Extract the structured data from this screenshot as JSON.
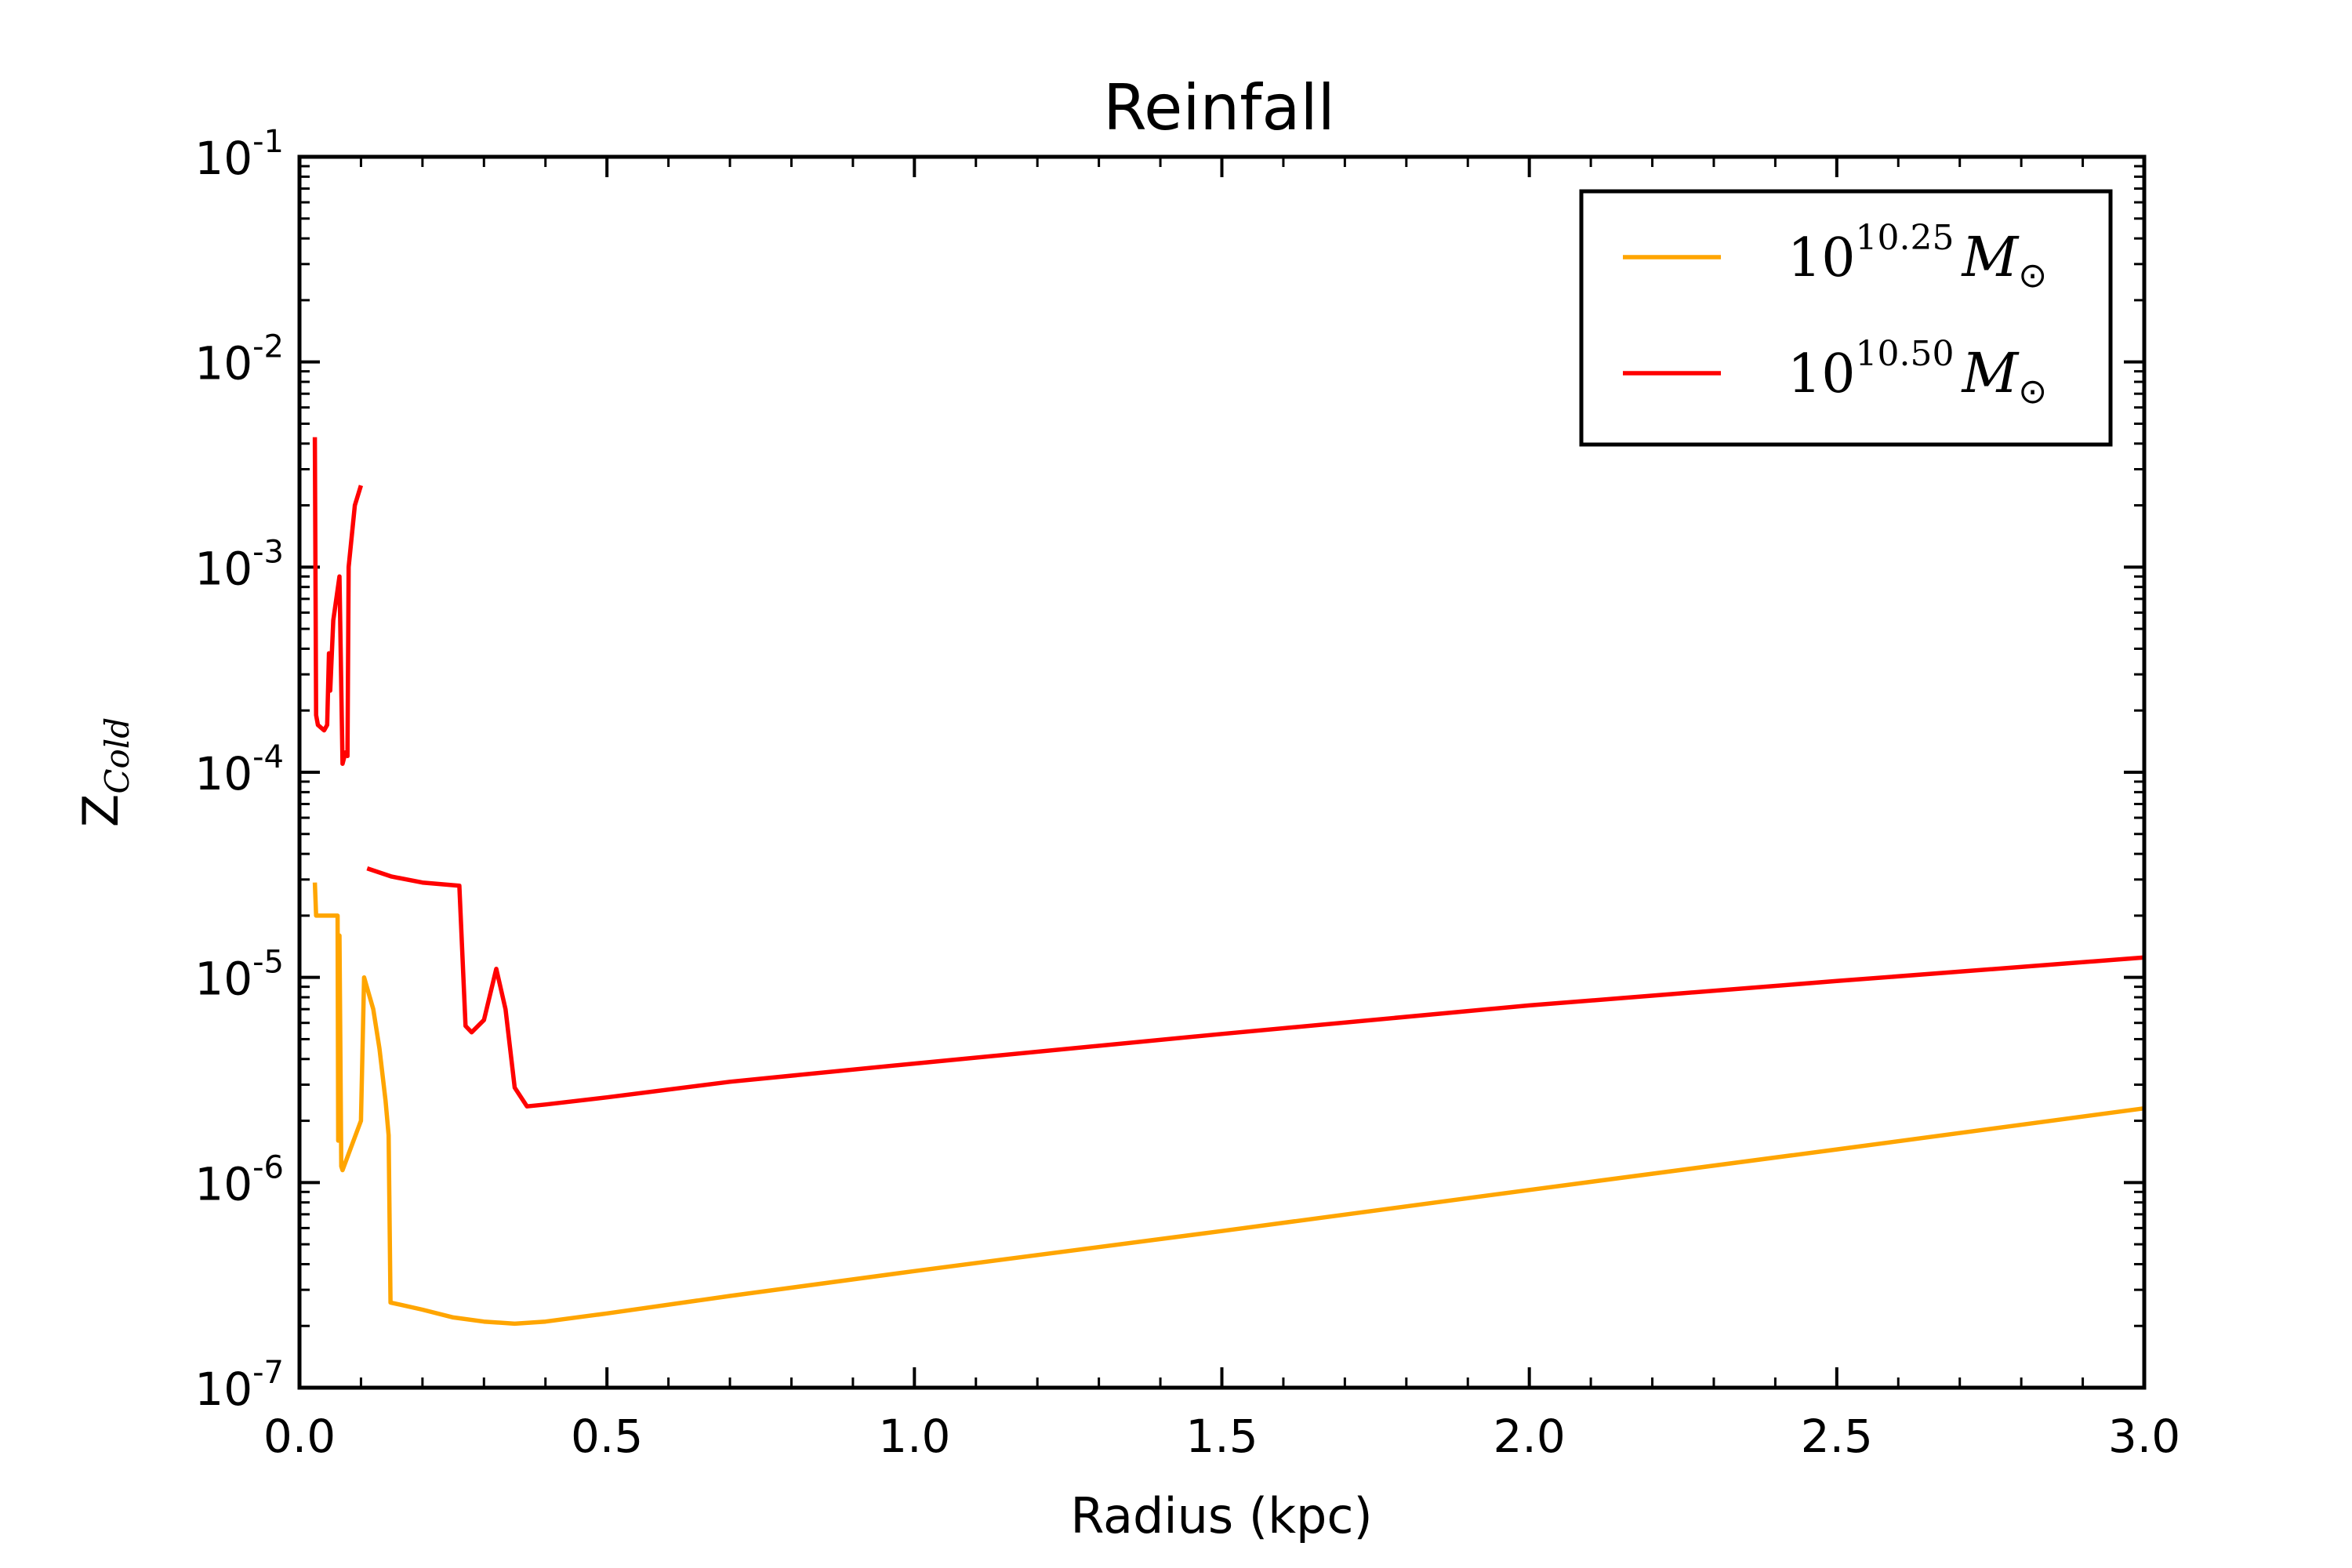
{
  "chart_data": {
    "type": "line",
    "title": "Reinfall",
    "xlabel": "Radius (kpc)",
    "ylabel": {
      "base": "Z",
      "sub": "Cold"
    },
    "xlim": [
      0.0,
      3.0
    ],
    "ylim": [
      1e-07,
      0.1
    ],
    "yscale": "log",
    "grid": false,
    "legend_position": "top-right",
    "x_ticks": [
      "0.0",
      "0.5",
      "1.0",
      "1.5",
      "2.0",
      "2.5",
      "3.0"
    ],
    "y_ticks": [
      {
        "base": "10",
        "exp": "-7"
      },
      {
        "base": "10",
        "exp": "-6"
      },
      {
        "base": "10",
        "exp": "-5"
      },
      {
        "base": "10",
        "exp": "-4"
      },
      {
        "base": "10",
        "exp": "-3"
      },
      {
        "base": "10",
        "exp": "-2"
      },
      {
        "base": "10",
        "exp": "-1"
      }
    ],
    "series": [
      {
        "name": "10^10.25 M_sun",
        "label_base": "10",
        "label_exp": "10.25",
        "label_m": "M",
        "label_sun": "⊙",
        "color": "#ffa500",
        "segments": [
          [
            [
              0.025,
              2.9e-05
            ],
            [
              0.027,
              2e-05
            ],
            [
              0.06,
              2e-05
            ],
            [
              0.062,
              2e-05
            ],
            [
              0.063,
              1.6e-06
            ],
            [
              0.065,
              1.6e-05
            ],
            [
              0.068,
              1.2e-06
            ],
            [
              0.07,
              1.15e-06
            ],
            [
              0.1,
              2e-06
            ],
            [
              0.105,
              1e-05
            ],
            [
              0.12,
              7e-06
            ],
            [
              0.13,
              4.5e-06
            ],
            [
              0.14,
              2.5e-06
            ],
            [
              0.145,
              1.7e-06
            ],
            [
              0.148,
              2.6e-07
            ],
            [
              0.2,
              2.4e-07
            ],
            [
              0.25,
              2.2e-07
            ],
            [
              0.3,
              2.1e-07
            ],
            [
              0.35,
              2.05e-07
            ],
            [
              0.4,
              2.1e-07
            ],
            [
              0.5,
              2.3e-07
            ],
            [
              0.7,
              2.8e-07
            ],
            [
              1.0,
              3.7e-07
            ],
            [
              1.5,
              5.8e-07
            ],
            [
              2.0,
              9.2e-07
            ],
            [
              2.5,
              1.45e-06
            ],
            [
              3.0,
              2.3e-06
            ]
          ]
        ]
      },
      {
        "name": "10^10.50 M_sun",
        "label_base": "10",
        "label_exp": "10.50",
        "label_m": "M",
        "label_sun": "⊙",
        "color": "#ff0000",
        "segments": [
          [
            [
              0.025,
              0.0043
            ],
            [
              0.027,
              0.00019
            ],
            [
              0.03,
              0.00017
            ],
            [
              0.04,
              0.00016
            ],
            [
              0.045,
              0.00017
            ],
            [
              0.048,
              0.00038
            ],
            [
              0.05,
              0.00025
            ],
            [
              0.055,
              0.00055
            ],
            [
              0.065,
              0.0009
            ],
            [
              0.07,
              0.00011
            ],
            [
              0.075,
              0.000125
            ],
            [
              0.078,
              0.00012
            ],
            [
              0.08,
              0.001
            ],
            [
              0.09,
              0.002
            ],
            [
              0.1,
              0.0025
            ]
          ],
          [
            [
              0.11,
              3.4e-05
            ],
            [
              0.15,
              3.1e-05
            ],
            [
              0.2,
              2.9e-05
            ],
            [
              0.26,
              2.8e-05
            ],
            [
              0.27,
              5.8e-06
            ],
            [
              0.28,
              5.4e-06
            ],
            [
              0.3,
              6.2e-06
            ],
            [
              0.32,
              1.1e-05
            ],
            [
              0.335,
              7e-06
            ],
            [
              0.35,
              2.9e-06
            ],
            [
              0.37,
              2.35e-06
            ],
            [
              0.4,
              2.4e-06
            ],
            [
              0.5,
              2.6e-06
            ],
            [
              0.7,
              3.1e-06
            ],
            [
              1.0,
              3.8e-06
            ],
            [
              1.5,
              5.3e-06
            ],
            [
              2.0,
              7.3e-06
            ],
            [
              2.5,
              9.6e-06
            ],
            [
              3.0,
              1.25e-05
            ]
          ]
        ]
      }
    ]
  }
}
